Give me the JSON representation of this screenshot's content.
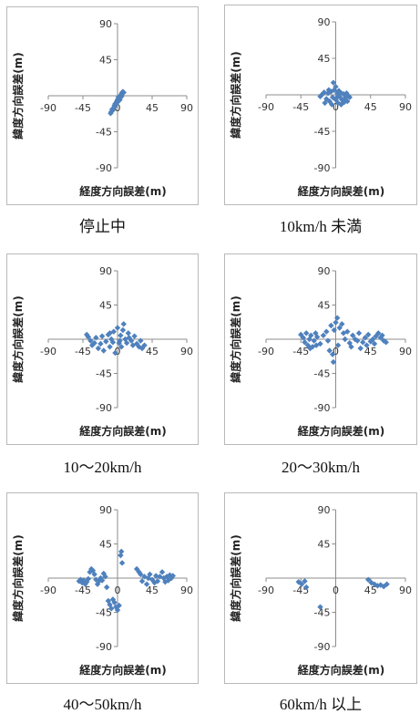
{
  "colors": {
    "marker": "#4f81bd",
    "axis": "#8c8c8c",
    "border": "#b9b9b9"
  },
  "chart_data": [
    {
      "type": "scatter",
      "caption": "停止中",
      "xlabel": "経度方向誤差(m)",
      "ylabel": "緯度方向誤差(m)",
      "xlim": [
        -90,
        90
      ],
      "ylim": [
        -90,
        90
      ],
      "xticks": [
        -90,
        -45,
        0,
        45,
        90
      ],
      "yticks": [
        90,
        45,
        0,
        -45,
        -90
      ],
      "grid": false,
      "legend": "none",
      "points": [
        [
          -8,
          -20
        ],
        [
          -6,
          -18
        ],
        [
          -5,
          -15
        ],
        [
          -4,
          -12
        ],
        [
          -3,
          -10
        ],
        [
          -2,
          -9
        ],
        [
          -1,
          -7
        ],
        [
          0,
          -5
        ],
        [
          1,
          -4
        ],
        [
          2,
          -3
        ],
        [
          3,
          -2
        ],
        [
          4,
          0
        ],
        [
          5,
          2
        ],
        [
          6,
          4
        ],
        [
          7,
          5
        ],
        [
          -9,
          -22
        ],
        [
          -7,
          -17
        ],
        [
          -4,
          -14
        ],
        [
          0,
          -8
        ],
        [
          2,
          -6
        ],
        [
          3,
          -5
        ],
        [
          4,
          -2
        ],
        [
          5,
          1
        ],
        [
          6,
          3
        ],
        [
          8,
          4
        ],
        [
          -2,
          -11
        ],
        [
          1,
          -2
        ],
        [
          5,
          -1
        ]
      ]
    },
    {
      "type": "scatter",
      "caption": "10km/h 未満",
      "xlabel": "経度方向誤差(m)",
      "ylabel": "緯度方向誤差(m)",
      "xlim": [
        -90,
        90
      ],
      "ylim": [
        -90,
        90
      ],
      "xticks": [
        -90,
        -45,
        0,
        45,
        90
      ],
      "yticks": [
        90,
        45,
        0,
        -45,
        -90
      ],
      "grid": false,
      "legend": "none",
      "points": [
        [
          -20,
          -2
        ],
        [
          -18,
          0
        ],
        [
          -15,
          3
        ],
        [
          -12,
          -5
        ],
        [
          -10,
          2
        ],
        [
          -8,
          -8
        ],
        [
          -6,
          4
        ],
        [
          -4,
          -3
        ],
        [
          -2,
          6
        ],
        [
          0,
          10
        ],
        [
          1,
          -4
        ],
        [
          2,
          2
        ],
        [
          3,
          -10
        ],
        [
          4,
          5
        ],
        [
          5,
          -2
        ],
        [
          6,
          3
        ],
        [
          8,
          -6
        ],
        [
          10,
          1
        ],
        [
          12,
          -4
        ],
        [
          14,
          2
        ],
        [
          15,
          -8
        ],
        [
          18,
          -3
        ],
        [
          -14,
          -10
        ],
        [
          -5,
          -12
        ],
        [
          7,
          -12
        ],
        [
          -3,
          15
        ],
        [
          0,
          -6
        ],
        [
          -9,
          6
        ],
        [
          11,
          -9
        ],
        [
          16,
          -1
        ]
      ]
    },
    {
      "type": "scatter",
      "caption": "10～20km/h",
      "xlabel": "経度方向誤差(m)",
      "ylabel": "緯度方向誤差(m)",
      "xlim": [
        -90,
        90
      ],
      "ylim": [
        -90,
        90
      ],
      "xticks": [
        -90,
        -45,
        0,
        45,
        90
      ],
      "yticks": [
        90,
        45,
        0,
        -45,
        -90
      ],
      "grid": false,
      "legend": "none",
      "points": [
        [
          -40,
          6
        ],
        [
          -38,
          3
        ],
        [
          -35,
          -2
        ],
        [
          -33,
          -8
        ],
        [
          -30,
          -5
        ],
        [
          -28,
          2
        ],
        [
          -25,
          -12
        ],
        [
          -22,
          -6
        ],
        [
          -20,
          4
        ],
        [
          -18,
          -15
        ],
        [
          -15,
          -3
        ],
        [
          -12,
          6
        ],
        [
          -10,
          -10
        ],
        [
          -8,
          0
        ],
        [
          -5,
          10
        ],
        [
          -3,
          -18
        ],
        [
          0,
          15
        ],
        [
          2,
          -5
        ],
        [
          4,
          5
        ],
        [
          5,
          -10
        ],
        [
          7,
          12
        ],
        [
          8,
          20
        ],
        [
          10,
          0
        ],
        [
          12,
          -5
        ],
        [
          14,
          8
        ],
        [
          15,
          2
        ],
        [
          18,
          -2
        ],
        [
          20,
          -8
        ],
        [
          22,
          4
        ],
        [
          25,
          -6
        ],
        [
          28,
          -10
        ],
        [
          30,
          -2
        ],
        [
          32,
          -12
        ],
        [
          35,
          -8
        ],
        [
          -10,
          8
        ],
        [
          -6,
          -4
        ],
        [
          3,
          -2
        ]
      ]
    },
    {
      "type": "scatter",
      "caption": "20～30km/h",
      "xlabel": "経度方向誤差(m)",
      "ylabel": "緯度方向誤差(m)",
      "xlim": [
        -90,
        90
      ],
      "ylim": [
        -90,
        90
      ],
      "xticks": [
        -90,
        -45,
        0,
        45,
        90
      ],
      "yticks": [
        90,
        45,
        0,
        -45,
        -90
      ],
      "grid": false,
      "legend": "none",
      "points": [
        [
          -45,
          6
        ],
        [
          -42,
          2
        ],
        [
          -40,
          -4
        ],
        [
          -38,
          8
        ],
        [
          -36,
          -8
        ],
        [
          -34,
          0
        ],
        [
          -32,
          5
        ],
        [
          -30,
          -10
        ],
        [
          -28,
          -2
        ],
        [
          -26,
          8
        ],
        [
          -24,
          3
        ],
        [
          -20,
          -6
        ],
        [
          -16,
          5
        ],
        [
          -12,
          10
        ],
        [
          -10,
          -2
        ],
        [
          -8,
          -15
        ],
        [
          -6,
          18
        ],
        [
          -4,
          -20
        ],
        [
          -3,
          -30
        ],
        [
          -2,
          12
        ],
        [
          0,
          22
        ],
        [
          2,
          28
        ],
        [
          3,
          -8
        ],
        [
          5,
          15
        ],
        [
          8,
          20
        ],
        [
          10,
          8
        ],
        [
          12,
          0
        ],
        [
          15,
          10
        ],
        [
          18,
          -5
        ],
        [
          20,
          -10
        ],
        [
          22,
          5
        ],
        [
          25,
          0
        ],
        [
          28,
          -2
        ],
        [
          30,
          8
        ],
        [
          32,
          -12
        ],
        [
          35,
          -4
        ],
        [
          38,
          2
        ],
        [
          40,
          -8
        ],
        [
          42,
          6
        ],
        [
          45,
          -3
        ],
        [
          48,
          0
        ],
        [
          50,
          -6
        ],
        [
          52,
          4
        ],
        [
          55,
          8
        ],
        [
          58,
          2
        ],
        [
          60,
          5
        ],
        [
          62,
          -2
        ],
        [
          65,
          -4
        ],
        [
          -25,
          -8
        ],
        [
          -33,
          -12
        ]
      ]
    },
    {
      "type": "scatter",
      "caption": "40～50km/h",
      "xlabel": "経度方向誤差(m)",
      "ylabel": "緯度方向誤差(m)",
      "xlim": [
        -90,
        90
      ],
      "ylim": [
        -90,
        90
      ],
      "xticks": [
        -90,
        -45,
        0,
        45,
        90
      ],
      "yticks": [
        90,
        45,
        0,
        -45,
        -90
      ],
      "grid": false,
      "legend": "none",
      "points": [
        [
          -50,
          -4
        ],
        [
          -48,
          -2
        ],
        [
          -46,
          -6
        ],
        [
          -44,
          -3
        ],
        [
          -42,
          -8
        ],
        [
          -40,
          -5
        ],
        [
          -38,
          -1
        ],
        [
          -36,
          8
        ],
        [
          -34,
          12
        ],
        [
          -32,
          10
        ],
        [
          -30,
          5
        ],
        [
          -28,
          -2
        ],
        [
          -26,
          -8
        ],
        [
          -24,
          -4
        ],
        [
          -22,
          0
        ],
        [
          -20,
          -3
        ],
        [
          -18,
          6
        ],
        [
          -16,
          2
        ],
        [
          -14,
          -12
        ],
        [
          -12,
          -30
        ],
        [
          -10,
          -35
        ],
        [
          -8,
          -40
        ],
        [
          -6,
          -28
        ],
        [
          -4,
          -32
        ],
        [
          -2,
          -38
        ],
        [
          0,
          -42
        ],
        [
          2,
          -36
        ],
        [
          4,
          30
        ],
        [
          5,
          35
        ],
        [
          6,
          20
        ],
        [
          25,
          12
        ],
        [
          28,
          8
        ],
        [
          30,
          5
        ],
        [
          32,
          -4
        ],
        [
          35,
          2
        ],
        [
          38,
          -8
        ],
        [
          40,
          0
        ],
        [
          42,
          5
        ],
        [
          45,
          -2
        ],
        [
          48,
          -6
        ],
        [
          50,
          3
        ],
        [
          52,
          -4
        ],
        [
          55,
          2
        ],
        [
          58,
          8
        ],
        [
          60,
          0
        ],
        [
          62,
          -5
        ],
        [
          64,
          2
        ],
        [
          66,
          -3
        ],
        [
          68,
          4
        ],
        [
          70,
          0
        ],
        [
          72,
          3
        ]
      ]
    },
    {
      "type": "scatter",
      "caption": "60km/h 以上",
      "xlabel": "経度方向誤差(m)",
      "ylabel": "緯度方向誤差(m)",
      "xlim": [
        -90,
        90
      ],
      "ylim": [
        -90,
        90
      ],
      "xticks": [
        -90,
        -45,
        0,
        45,
        90
      ],
      "yticks": [
        90,
        45,
        0,
        -45,
        -90
      ],
      "grid": false,
      "legend": "none",
      "points": [
        [
          -48,
          -5
        ],
        [
          -44,
          -8
        ],
        [
          -40,
          -4
        ],
        [
          -38,
          -12
        ],
        [
          -20,
          -38
        ],
        [
          42,
          -2
        ],
        [
          46,
          -6
        ],
        [
          50,
          -8
        ],
        [
          54,
          -10
        ],
        [
          58,
          -9
        ],
        [
          62,
          -11
        ],
        [
          66,
          -8
        ]
      ]
    }
  ]
}
